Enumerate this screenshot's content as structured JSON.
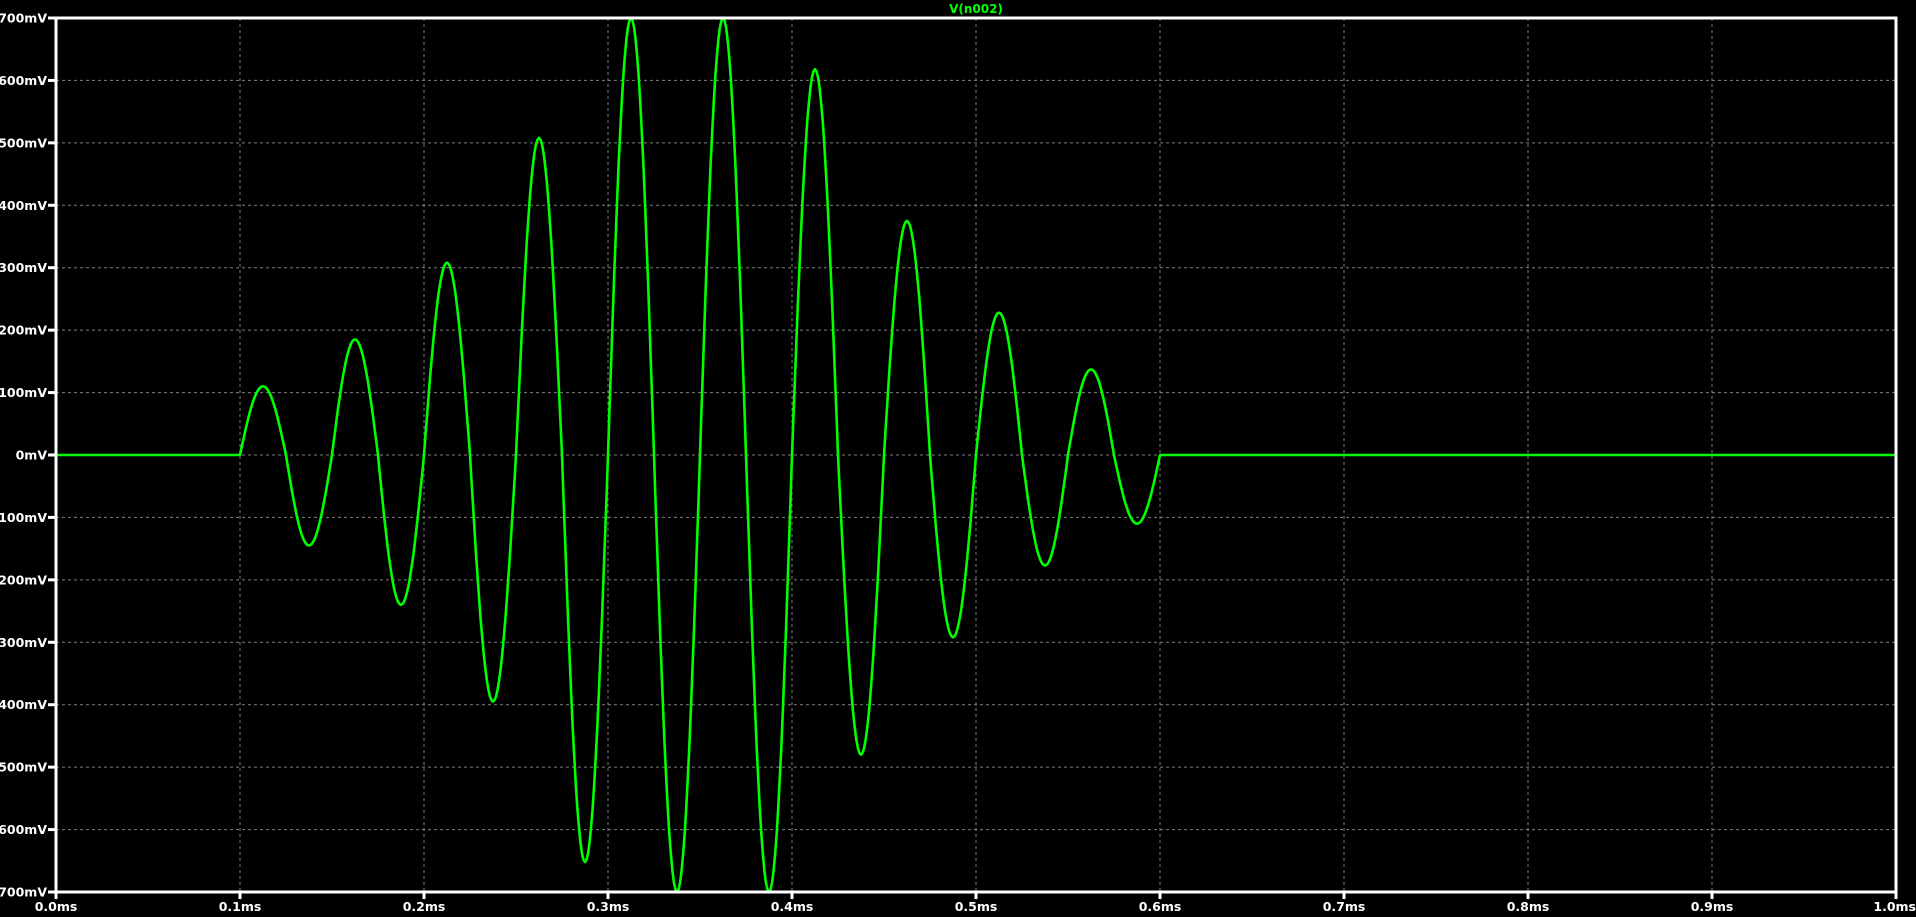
{
  "chart_data": {
    "type": "line",
    "title": "V(n002)",
    "xlabel": "",
    "ylabel": "",
    "xlim": [
      0.0,
      1.0
    ],
    "ylim": [
      -700,
      700
    ],
    "x_unit": "ms",
    "y_unit": "mV",
    "grid": true,
    "x_ticks": [
      "0.0ms",
      "0.1ms",
      "0.2ms",
      "0.3ms",
      "0.4ms",
      "0.5ms",
      "0.6ms",
      "0.7ms",
      "0.8ms",
      "0.9ms",
      "1.0ms"
    ],
    "y_ticks": [
      "700mV",
      "600mV",
      "500mV",
      "400mV",
      "300mV",
      "200mV",
      "100mV",
      "0mV",
      "-100mV",
      "-200mV",
      "-300mV",
      "-400mV",
      "-500mV",
      "-600mV",
      "-700mV"
    ],
    "colors": {
      "background": "#000000",
      "trace": "#00ff00",
      "axis": "#ffffff",
      "grid": "#808080"
    },
    "series": [
      {
        "name": "V(n002)",
        "x": [
          0.0,
          0.1,
          0.1125,
          0.1375,
          0.1625,
          0.1875,
          0.2125,
          0.2375,
          0.2625,
          0.2875,
          0.3125,
          0.3375,
          0.3625,
          0.3875,
          0.4125,
          0.4375,
          0.4625,
          0.4875,
          0.5125,
          0.5375,
          0.5625,
          0.5875,
          0.6,
          1.0
        ],
        "y": [
          0,
          0,
          110,
          -145,
          185,
          -240,
          308,
          -395,
          508,
          -652,
          700,
          -700,
          700,
          -700,
          618,
          -480,
          375,
          -292,
          228,
          -177,
          137,
          -110,
          0,
          0
        ]
      }
    ]
  }
}
